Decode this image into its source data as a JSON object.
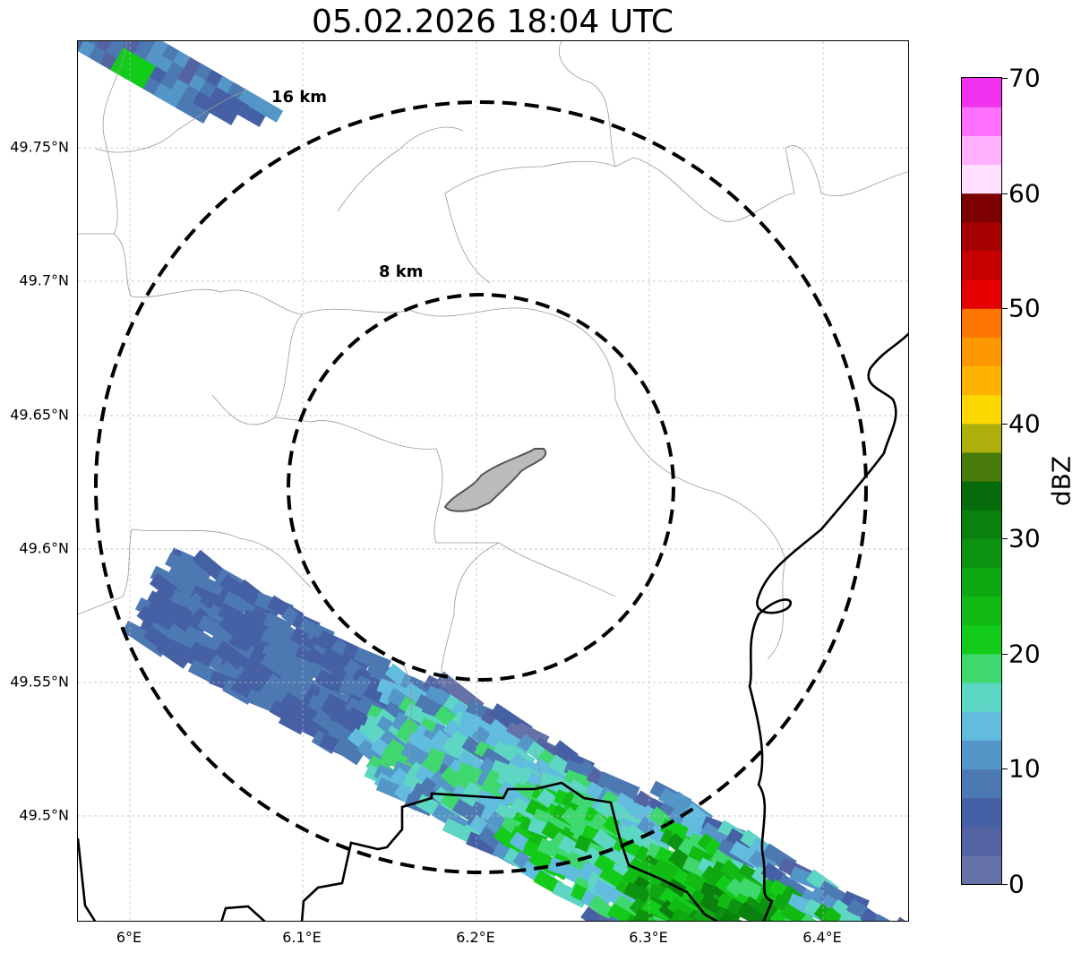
{
  "title": "05.02.2026 18:04 UTC",
  "map": {
    "lat_ticks": [
      "49.75°N",
      "49.7°N",
      "49.65°N",
      "49.6°N",
      "49.55°N",
      "49.5°N"
    ],
    "lon_ticks": [
      "6°E",
      "6.1°E",
      "6.2°E",
      "6.3°E",
      "6.4°E"
    ],
    "range_rings": [
      {
        "label": "8 km",
        "radius_km": 8
      },
      {
        "label": "16 km",
        "radius_km": 16
      }
    ],
    "gridlines": "dashed"
  },
  "colorbar": {
    "label": "dBZ",
    "ticks": [
      "0",
      "10",
      "20",
      "30",
      "40",
      "50",
      "60",
      "70"
    ],
    "min": 0,
    "max": 70,
    "colors": [
      "#6472a8",
      "#5464a3",
      "#4560a4",
      "#4d79b2",
      "#5596c8",
      "#61bcde",
      "#5ed6c4",
      "#3ed86e",
      "#13cc1a",
      "#11bb14",
      "#0fa812",
      "#0c9410",
      "#0a810e",
      "#066b0b",
      "#4a7c0c",
      "#adb00c",
      "#fdd800",
      "#fdb300",
      "#fd9700",
      "#fd7500",
      "#e60000",
      "#c90000",
      "#a60000",
      "#7c0000",
      "#ffe0ff",
      "#ffb0ff",
      "#ff70ff",
      "#f032ef"
    ]
  }
}
